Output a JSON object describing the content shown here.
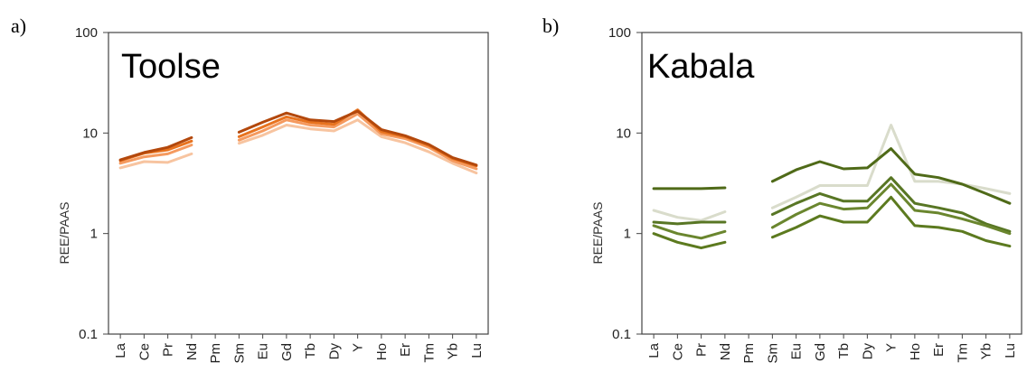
{
  "chart_data": [
    {
      "panel_letter": "a)",
      "title": "Toolse",
      "type": "line",
      "ylabel": "REE/PAAS",
      "yscale": "log",
      "ylim": [
        0.1,
        100
      ],
      "yticks": [
        "100",
        "10",
        "1",
        "0.1"
      ],
      "categories": [
        "La",
        "Ce",
        "Pr",
        "Nd",
        "Pm",
        "Sm",
        "Eu",
        "Gd",
        "Tb",
        "Dy",
        "Y",
        "Ho",
        "Er",
        "Tm",
        "Yb",
        "Lu"
      ],
      "series": [
        {
          "color": "#f7c4a0",
          "values": [
            4.5,
            5.2,
            5.1,
            6.2,
            null,
            7.9,
            9.5,
            12.0,
            11.0,
            10.5,
            13.5,
            9.2,
            8.0,
            6.5,
            5.0,
            4.0
          ]
        },
        {
          "color": "#f59a5f",
          "values": [
            5.0,
            5.8,
            6.2,
            7.6,
            null,
            8.5,
            10.5,
            13.5,
            12.0,
            11.5,
            15.5,
            9.8,
            8.8,
            7.2,
            5.3,
            4.4
          ]
        },
        {
          "color": "#e8731f",
          "values": [
            5.3,
            6.3,
            6.8,
            8.3,
            null,
            9.2,
            11.5,
            14.5,
            12.8,
            12.2,
            17.0,
            10.3,
            9.2,
            7.5,
            5.6,
            4.7
          ]
        },
        {
          "color": "#b3480c",
          "values": [
            5.4,
            6.4,
            7.2,
            9.0,
            null,
            10.2,
            12.8,
            15.8,
            13.5,
            13.0,
            16.5,
            10.8,
            9.4,
            7.7,
            5.7,
            4.8
          ]
        }
      ]
    },
    {
      "panel_letter": "b)",
      "title": "Kabala",
      "type": "line",
      "ylabel": "REE/PAAS",
      "yscale": "log",
      "ylim": [
        0.1,
        100
      ],
      "yticks": [
        "100",
        "10",
        "1",
        "0.1"
      ],
      "categories": [
        "La",
        "Ce",
        "Pr",
        "Nd",
        "Pm",
        "Sm",
        "Eu",
        "Gd",
        "Tb",
        "Dy",
        "Y",
        "Ho",
        "Er",
        "Tm",
        "Yb",
        "Lu"
      ],
      "series": [
        {
          "color": "#d9dccb",
          "values": [
            1.7,
            1.45,
            1.35,
            1.65,
            null,
            1.8,
            2.3,
            3.0,
            3.0,
            3.0,
            12.0,
            3.3,
            3.3,
            3.1,
            2.8,
            2.5
          ]
        },
        {
          "color": "#4f6a18",
          "values": [
            2.8,
            2.8,
            2.8,
            2.85,
            null,
            3.3,
            4.3,
            5.2,
            4.4,
            4.5,
            7.0,
            3.9,
            3.6,
            3.1,
            2.5,
            2.0
          ]
        },
        {
          "color": "#587624",
          "values": [
            1.3,
            1.25,
            1.3,
            1.3,
            null,
            1.55,
            2.0,
            2.5,
            2.1,
            2.1,
            3.6,
            2.0,
            1.8,
            1.6,
            1.25,
            1.05
          ]
        },
        {
          "color": "#6a862e",
          "values": [
            1.2,
            1.0,
            0.9,
            1.05,
            null,
            1.15,
            1.55,
            2.0,
            1.75,
            1.8,
            3.1,
            1.7,
            1.6,
            1.4,
            1.2,
            1.0
          ]
        },
        {
          "color": "#5c7a1f",
          "values": [
            1.0,
            0.82,
            0.72,
            0.82,
            null,
            0.92,
            1.15,
            1.5,
            1.3,
            1.3,
            2.3,
            1.2,
            1.15,
            1.05,
            0.85,
            0.75
          ]
        }
      ]
    }
  ]
}
